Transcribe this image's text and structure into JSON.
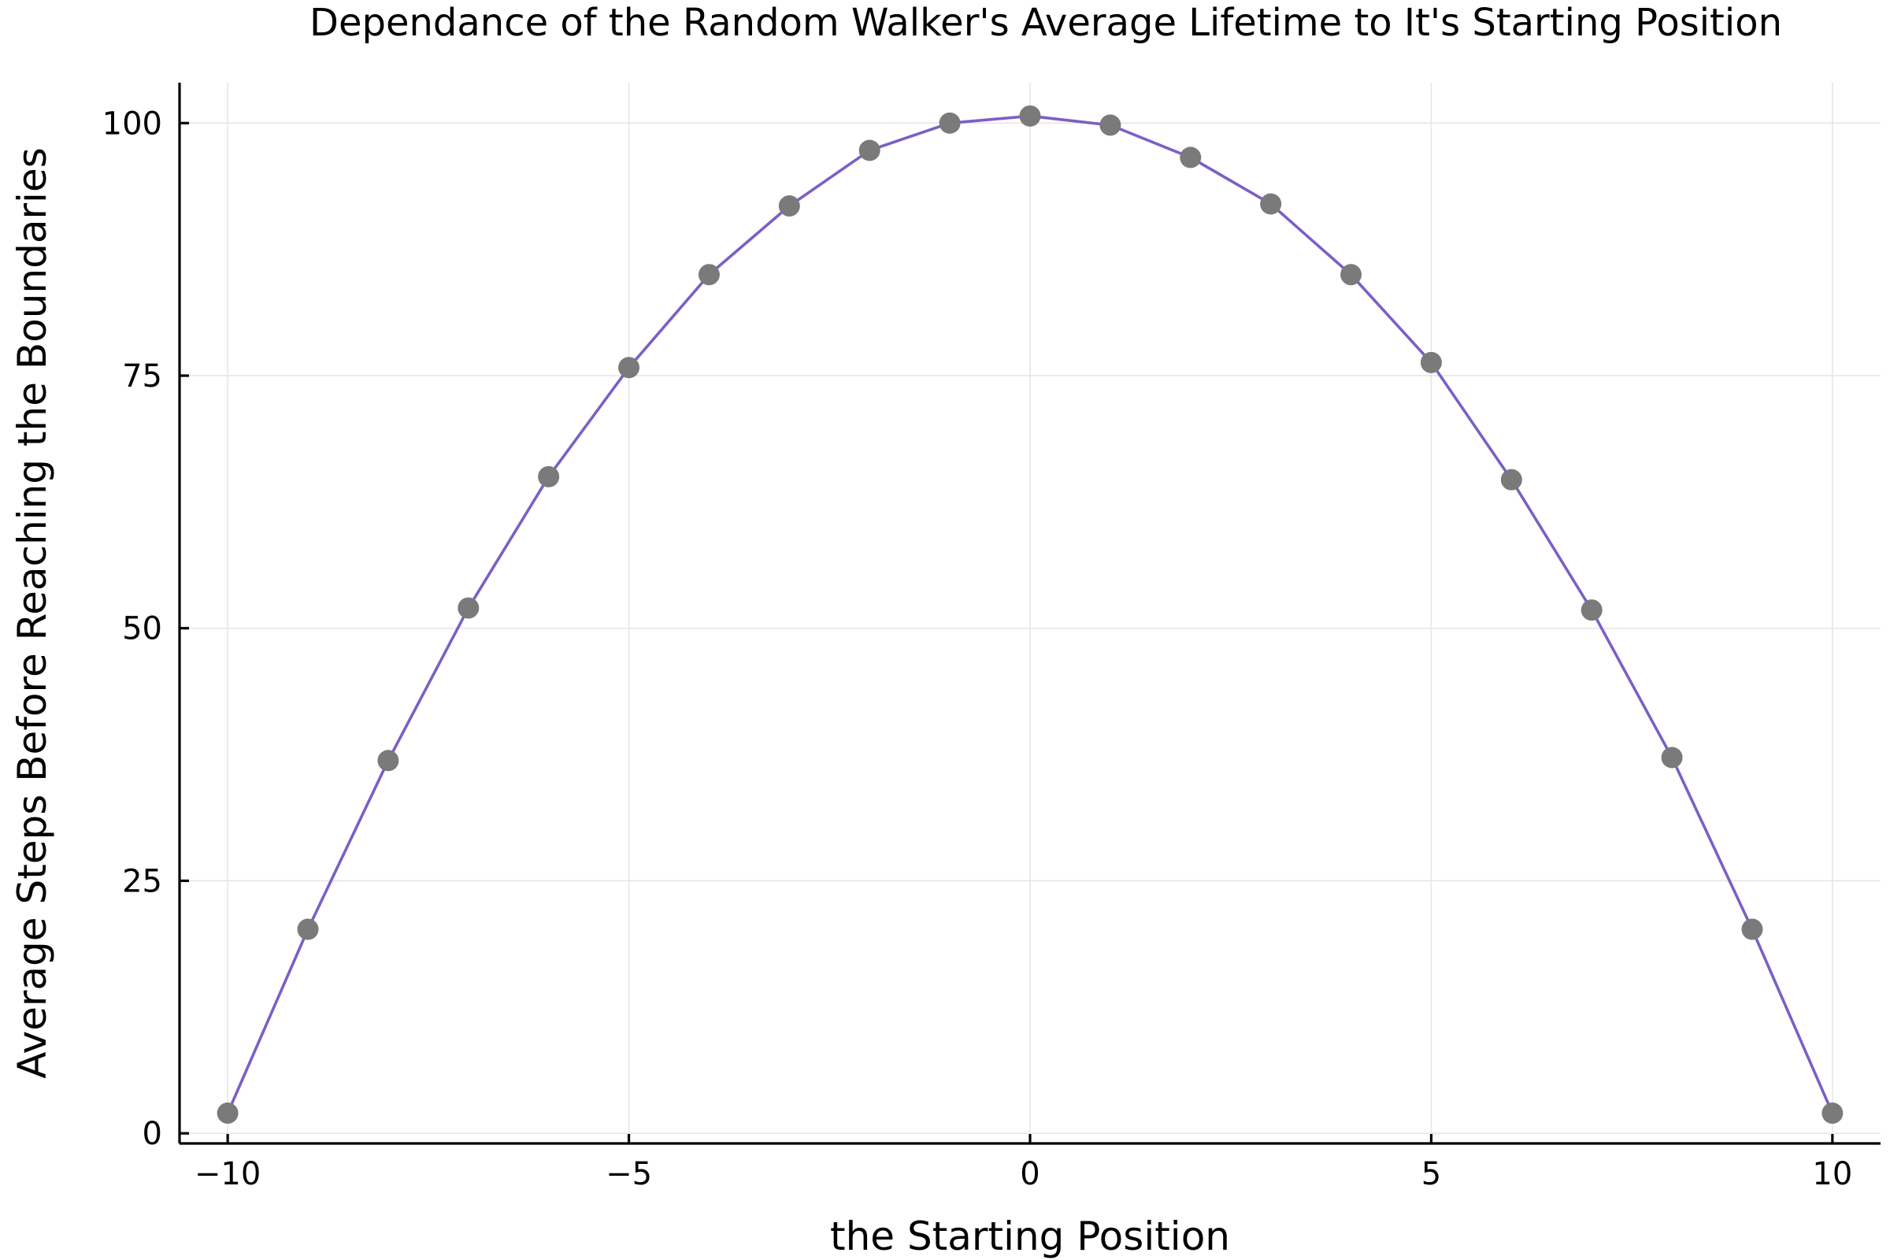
{
  "chart_data": {
    "type": "line",
    "title": "Dependance of the Random Walker's Average Lifetime to It's Starting Position",
    "xlabel": "the Starting Position",
    "ylabel": "Average Steps Before Reaching the Boundaries",
    "xlim": [
      -10.6,
      10.6
    ],
    "ylim": [
      -1,
      104
    ],
    "x_ticks": [
      -10,
      -5,
      0,
      5,
      10
    ],
    "x_tick_labels": [
      "−10",
      "−5",
      "0",
      "5",
      "10"
    ],
    "y_ticks": [
      0,
      25,
      50,
      75,
      100
    ],
    "y_tick_labels": [
      "0",
      "25",
      "50",
      "75",
      "100"
    ],
    "grid": true,
    "legend": "none",
    "series": [
      {
        "line_color": "#7b5fc6",
        "marker_color": "#7a7a7a",
        "x": [
          -10,
          -9,
          -8,
          -7,
          -6,
          -5,
          -4,
          -3,
          -2,
          -1,
          0,
          1,
          2,
          3,
          4,
          5,
          6,
          7,
          8,
          9,
          10
        ],
        "y": [
          2.0,
          20.2,
          36.9,
          52.0,
          65.0,
          75.8,
          85.0,
          91.8,
          97.3,
          100.0,
          100.7,
          99.8,
          96.6,
          92.0,
          85.0,
          76.3,
          64.7,
          51.8,
          37.2,
          20.2,
          2.0
        ]
      }
    ]
  }
}
